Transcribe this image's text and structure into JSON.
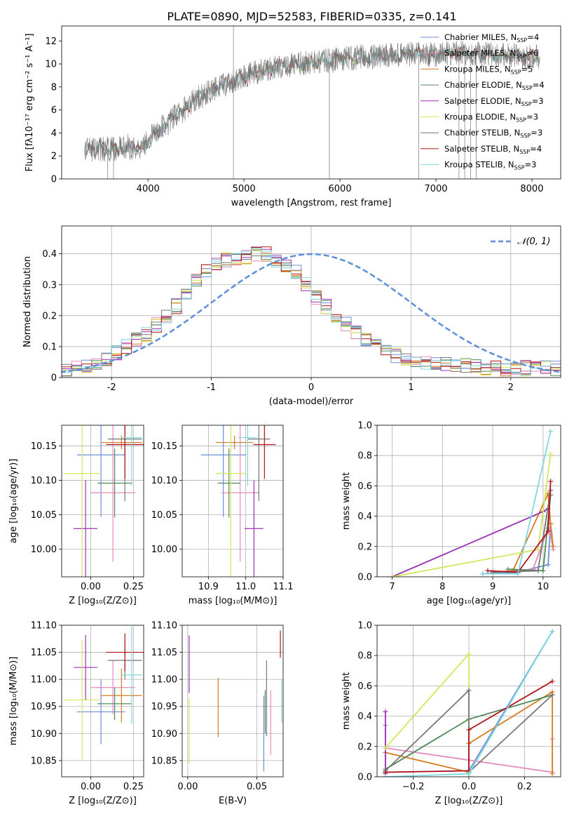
{
  "figure_title": "PLATE=0890, MJD=52583, FIBERID=0335, z=0.141",
  "colors": {
    "chabrier_miles": "#6b8fd6",
    "salpeter_miles": "#e48ac0",
    "kroupa_miles": "#d97a1f",
    "chabrier_elodie": "#4e8a57",
    "salpeter_elodie": "#9b2fb5",
    "kroupa_elodie": "#d4e65a",
    "chabrier_stelib": "#777777",
    "salpeter_stelib": "#b3131a",
    "kroupa_stelib": "#7fd8e0",
    "gaussian": "#5b8fd9"
  },
  "chart_data": [
    {
      "id": "spectrum",
      "type": "line",
      "title": "PLATE=0890, MJD=52583, FIBERID=0335, z=0.141",
      "xlabel": "wavelength [Angstrom, rest frame]",
      "ylabel": "Flux [fλ10⁻¹⁷ erg cm⁻² s⁻¹ A⁻¹]",
      "xlim": [
        3100,
        8300
      ],
      "ylim": [
        0,
        13.3
      ],
      "xticks": [
        4000,
        5000,
        6000,
        7000,
        8000
      ],
      "yticks": [
        0,
        2,
        4,
        6,
        8,
        10,
        12
      ],
      "grid": false,
      "legend_position": "upper-right",
      "x_range_data": [
        3340,
        8080
      ],
      "continuum": {
        "x": [
          3340,
          3500,
          3600,
          3700,
          3800,
          3900,
          4000,
          4100,
          4200,
          4300,
          4400,
          4500,
          4600,
          4800,
          5000,
          5200,
          5400,
          5600,
          5800,
          6000,
          6200,
          6400,
          6600,
          6800,
          7000,
          7200,
          7400,
          7600,
          7800,
          8080
        ],
        "y": [
          2.5,
          2.6,
          2.6,
          2.7,
          2.8,
          2.6,
          3.4,
          4.2,
          4.8,
          5.6,
          6.2,
          7.0,
          7.4,
          8.2,
          9.0,
          9.4,
          9.8,
          10.0,
          10.2,
          10.4,
          10.6,
          10.6,
          10.8,
          10.8,
          10.8,
          11.0,
          10.9,
          10.8,
          10.7,
          10.6
        ]
      },
      "series": [
        {
          "name": "Chabrier MILES, N$_{SSP}$=4",
          "label_main": "Chabrier MILES, N",
          "label_sub": "SSP",
          "label_end": "=4",
          "color_key": "chabrier_miles"
        },
        {
          "name": "Salpeter MILES, N$_{SSP}$=6",
          "label_main": "Salpeter MILES, N",
          "label_sub": "SSP",
          "label_end": "=6",
          "color_key": "salpeter_miles"
        },
        {
          "name": "Kroupa MILES, N$_{SSP}$=5",
          "label_main": "Kroupa MILES, N",
          "label_sub": "SSP",
          "label_end": "=5",
          "color_key": "kroupa_miles"
        },
        {
          "name": "Chabrier ELODIE, N$_{SSP}$=4",
          "label_main": "Chabrier ELODIE, N",
          "label_sub": "SSP",
          "label_end": "=4",
          "color_key": "chabrier_elodie"
        },
        {
          "name": "Salpeter ELODIE, N$_{SSP}$=3",
          "label_main": "Salpeter ELODIE, N",
          "label_sub": "SSP",
          "label_end": "=3",
          "color_key": "salpeter_elodie"
        },
        {
          "name": "Kroupa ELODIE, N$_{SSP}$=3",
          "label_main": "Kroupa ELODIE, N",
          "label_sub": "SSP",
          "label_end": "=3",
          "color_key": "kroupa_elodie"
        },
        {
          "name": "Chabrier STELIB, N$_{SSP}$=3",
          "label_main": "Chabrier STELIB, N",
          "label_sub": "SSP",
          "label_end": "=3",
          "color_key": "chabrier_stelib"
        },
        {
          "name": "Salpeter STELIB, N$_{SSP}$=4",
          "label_main": "Salpeter STELIB, N",
          "label_sub": "SSP",
          "label_end": "=4",
          "color_key": "salpeter_stelib"
        },
        {
          "name": "Kroupa STELIB, N$_{SSP}$=3",
          "label_main": "Kroupa STELIB, N",
          "label_sub": "SSP",
          "label_end": "=3",
          "color_key": "kroupa_stelib"
        }
      ]
    },
    {
      "id": "residuals",
      "type": "histogram",
      "xlabel": "(data-model)/error",
      "ylabel": "Normed distribution",
      "xlim": [
        -2.5,
        2.5
      ],
      "ylim": [
        0,
        0.49
      ],
      "xticks": [
        -2,
        -1,
        0,
        1,
        2
      ],
      "yticks": [
        0.0,
        0.1,
        0.2,
        0.3,
        0.4
      ],
      "grid": true,
      "legend_position": "upper-right",
      "legend_label": "𝒩(0, 1)",
      "bin_width": 0.1,
      "gaussian": {
        "mean": 0,
        "sigma": 1,
        "style": "dashed"
      },
      "envelope_y": [
        0.02,
        0.03,
        0.04,
        0.05,
        0.06,
        0.08,
        0.1,
        0.12,
        0.14,
        0.17,
        0.2,
        0.23,
        0.27,
        0.31,
        0.34,
        0.37,
        0.38,
        0.38,
        0.39,
        0.4,
        0.4,
        0.38,
        0.36,
        0.34,
        0.3,
        0.26,
        0.23,
        0.2,
        0.17,
        0.15,
        0.12,
        0.1,
        0.08,
        0.07,
        0.06,
        0.05,
        0.05,
        0.05,
        0.04,
        0.04,
        0.04,
        0.04,
        0.03,
        0.03,
        0.03,
        0.03,
        0.03,
        0.03,
        0.03,
        0.03
      ],
      "envelope_x_start": -2.5
    },
    {
      "id": "z_age",
      "type": "errorbar",
      "xlabel": "Z [log₁₀(Z/Z⊙)]",
      "ylabel": "age  [log₁₀(age/yr)]",
      "xlim": [
        -0.17,
        0.31
      ],
      "ylim": [
        9.96,
        10.18
      ],
      "xticks": [
        0.0,
        0.25
      ],
      "xtick_labels": [
        "0.00",
        "0.25"
      ],
      "yticks": [
        10.0,
        10.05,
        10.1,
        10.15
      ],
      "ytick_labels": [
        "10.00",
        "10.05",
        "10.10",
        "10.15"
      ],
      "grid": true,
      "points": [
        {
          "color_key": "chabrier_miles",
          "x": 0.06,
          "xerr": 0.14,
          "y": 10.137,
          "yerr": 0.09
        },
        {
          "color_key": "salpeter_miles",
          "x": 0.13,
          "xerr": 0.13,
          "y": 10.082,
          "yerr": 0.1
        },
        {
          "color_key": "kroupa_miles",
          "x": 0.18,
          "xerr": 0.12,
          "y": 10.155,
          "yerr": 0.01
        },
        {
          "color_key": "chabrier_elodie",
          "x": 0.14,
          "xerr": 0.1,
          "y": 10.096,
          "yerr": 0.05
        },
        {
          "color_key": "salpeter_elodie",
          "x": -0.03,
          "xerr": 0.07,
          "y": 10.03,
          "yerr": 0.07
        },
        {
          "color_key": "kroupa_elodie",
          "x": -0.05,
          "xerr": 0.11,
          "y": 10.11,
          "yerr": 0.15
        },
        {
          "color_key": "chabrier_stelib",
          "x": 0.2,
          "xerr": 0.1,
          "y": 10.16,
          "yerr": 0.09
        },
        {
          "color_key": "salpeter_stelib",
          "x": 0.2,
          "xerr": 0.11,
          "y": 10.152,
          "yerr": 0.05
        },
        {
          "color_key": "kroupa_stelib",
          "x": 0.24,
          "xerr": 0.06,
          "y": 10.162,
          "yerr": 0.07
        }
      ]
    },
    {
      "id": "mass_age",
      "type": "errorbar",
      "xlabel": "mass [log₁₀(M/M⊙)]",
      "ylabel": "",
      "xlim": [
        10.83,
        11.1
      ],
      "ylim": [
        9.96,
        10.18
      ],
      "xticks": [
        10.9,
        11.0,
        11.1
      ],
      "xtick_labels": [
        "10.9",
        "11.0",
        "11.1"
      ],
      "yticks": [
        10.0,
        10.05,
        10.1,
        10.15
      ],
      "ytick_labels": [
        "10.00",
        "10.05",
        "10.10",
        "10.15"
      ],
      "grid": true,
      "points": [
        {
          "color_key": "chabrier_miles",
          "x": 10.94,
          "xerr": 0.06,
          "y": 10.137,
          "yerr": 0.09
        },
        {
          "color_key": "salpeter_miles",
          "x": 10.985,
          "xerr": 0.05,
          "y": 10.082,
          "yerr": 0.1
        },
        {
          "color_key": "kroupa_miles",
          "x": 10.97,
          "xerr": 0.05,
          "y": 10.155,
          "yerr": 0.01
        },
        {
          "color_key": "chabrier_elodie",
          "x": 10.955,
          "xerr": 0.03,
          "y": 10.096,
          "yerr": 0.05
        },
        {
          "color_key": "salpeter_elodie",
          "x": 11.022,
          "xerr": 0.025,
          "y": 10.03,
          "yerr": 0.07
        },
        {
          "color_key": "kroupa_elodie",
          "x": 10.96,
          "xerr": 0.04,
          "y": 10.11,
          "yerr": 0.15
        },
        {
          "color_key": "chabrier_stelib",
          "x": 11.035,
          "xerr": 0.03,
          "y": 10.16,
          "yerr": 0.09
        },
        {
          "color_key": "salpeter_stelib",
          "x": 11.05,
          "xerr": 0.03,
          "y": 10.152,
          "yerr": 0.05
        },
        {
          "color_key": "kroupa_stelib",
          "x": 11.005,
          "xerr": 0.025,
          "y": 10.162,
          "yerr": 0.07
        }
      ]
    },
    {
      "id": "age_weight",
      "type": "line",
      "xlabel": "age  [log₁₀(age/yr)]",
      "ylabel": "mass weight",
      "xlim": [
        6.7,
        10.35
      ],
      "ylim": [
        0,
        1.0
      ],
      "xticks": [
        7,
        8,
        9,
        10
      ],
      "yticks": [
        0.0,
        0.2,
        0.4,
        0.6,
        0.8,
        1.0
      ],
      "ytick_labels": [
        "0.0",
        "0.2",
        "0.4",
        "0.6",
        "0.8",
        "1.0"
      ],
      "grid": true,
      "series": [
        {
          "color_key": "chabrier_miles",
          "x": [
            8.8,
            9.5,
            10.1,
            10.15
          ],
          "y": [
            0.02,
            0.03,
            0.08,
            0.35
          ]
        },
        {
          "color_key": "salpeter_miles",
          "x": [
            9.0,
            9.8,
            10.1,
            10.15,
            10.2
          ],
          "y": [
            0.03,
            0.05,
            0.32,
            0.28,
            0.18
          ]
        },
        {
          "color_key": "kroupa_miles",
          "x": [
            9.0,
            9.4,
            10.1,
            10.15,
            10.2
          ],
          "y": [
            0.03,
            0.04,
            0.55,
            0.35,
            0.2
          ]
        },
        {
          "color_key": "chabrier_elodie",
          "x": [
            9.3,
            10.0,
            10.15
          ],
          "y": [
            0.05,
            0.04,
            0.54
          ]
        },
        {
          "color_key": "salpeter_elodie",
          "x": [
            7.0,
            10.0,
            10.1
          ],
          "y": [
            0.0,
            0.43,
            0.45
          ]
        },
        {
          "color_key": "kroupa_elodie",
          "x": [
            7.0,
            9.9,
            10.15
          ],
          "y": [
            0.0,
            0.18,
            0.81
          ]
        },
        {
          "color_key": "chabrier_stelib",
          "x": [
            9.0,
            9.9,
            10.15
          ],
          "y": [
            0.03,
            0.04,
            0.57
          ]
        },
        {
          "color_key": "salpeter_stelib",
          "x": [
            8.9,
            9.5,
            10.1,
            10.15
          ],
          "y": [
            0.04,
            0.03,
            0.3,
            0.63
          ]
        },
        {
          "color_key": "kroupa_stelib",
          "x": [
            8.8,
            9.5,
            10.15
          ],
          "y": [
            0.02,
            0.02,
            0.96
          ]
        }
      ]
    },
    {
      "id": "z_mass",
      "type": "errorbar",
      "xlabel": "Z [log₁₀(Z/Z⊙)]",
      "ylabel": "mass [log₁₀(M/M⊙)]",
      "xlim": [
        -0.17,
        0.31
      ],
      "ylim": [
        10.82,
        11.1
      ],
      "xticks": [
        0.0,
        0.25
      ],
      "xtick_labels": [
        "0.00",
        "0.25"
      ],
      "yticks": [
        10.85,
        10.9,
        10.95,
        11.0,
        11.05,
        11.1
      ],
      "ytick_labels": [
        "10.85",
        "10.90",
        "10.95",
        "11.00",
        "11.05",
        "11.10"
      ],
      "grid": true,
      "points": [
        {
          "color_key": "chabrier_miles",
          "x": 0.06,
          "xerr": 0.14,
          "y": 10.94,
          "yerr": 0.06
        },
        {
          "color_key": "salpeter_miles",
          "x": 0.13,
          "xerr": 0.13,
          "y": 10.985,
          "yerr": 0.05
        },
        {
          "color_key": "kroupa_miles",
          "x": 0.18,
          "xerr": 0.12,
          "y": 10.97,
          "yerr": 0.05
        },
        {
          "color_key": "chabrier_elodie",
          "x": 0.14,
          "xerr": 0.1,
          "y": 10.955,
          "yerr": 0.03
        },
        {
          "color_key": "salpeter_elodie",
          "x": -0.03,
          "xerr": 0.07,
          "y": 11.022,
          "yerr": 0.06
        },
        {
          "color_key": "kroupa_elodie",
          "x": -0.05,
          "xerr": 0.11,
          "y": 10.962,
          "yerr": 0.11
        },
        {
          "color_key": "chabrier_stelib",
          "x": 0.2,
          "xerr": 0.1,
          "y": 11.035,
          "yerr": 0.035
        },
        {
          "color_key": "salpeter_stelib",
          "x": 0.2,
          "xerr": 0.11,
          "y": 11.05,
          "yerr": 0.035
        },
        {
          "color_key": "kroupa_stelib",
          "x": 0.24,
          "xerr": 0.06,
          "y": 11.008,
          "yerr": 0.09
        }
      ]
    },
    {
      "id": "ebv_mass",
      "type": "errorbar",
      "xlabel": "E(B-V)",
      "ylabel": "",
      "xlim": [
        -0.004,
        0.069
      ],
      "ylim": [
        10.82,
        11.1
      ],
      "xticks": [
        0.0,
        0.05
      ],
      "xtick_labels": [
        "0.00",
        "0.05"
      ],
      "yticks": [
        10.85,
        10.9,
        10.95,
        11.0,
        11.05,
        11.1
      ],
      "ytick_labels": [
        "10.85",
        "10.90",
        "10.95",
        "11.00",
        "11.05",
        "11.10"
      ],
      "grid": true,
      "points": [
        {
          "color_key": "chabrier_miles",
          "x": 0.055,
          "xerr": 0,
          "y": 10.9,
          "yerr": 0.07
        },
        {
          "color_key": "salpeter_miles",
          "x": 0.06,
          "xerr": 0,
          "y": 10.92,
          "yerr": 0.06
        },
        {
          "color_key": "kroupa_miles",
          "x": 0.022,
          "xerr": 0,
          "y": 10.948,
          "yerr": 0.055
        },
        {
          "color_key": "chabrier_elodie",
          "x": 0.056,
          "xerr": 0,
          "y": 10.94,
          "yerr": 0.04
        },
        {
          "color_key": "salpeter_elodie",
          "x": 0.001,
          "xerr": 0,
          "y": 11.028,
          "yerr": 0.053
        },
        {
          "color_key": "kroupa_elodie",
          "x": 0.001,
          "xerr": 0,
          "y": 10.905,
          "yerr": 0.06
        },
        {
          "color_key": "chabrier_stelib",
          "x": 0.057,
          "xerr": 0,
          "y": 10.965,
          "yerr": 0.07
        },
        {
          "color_key": "salpeter_stelib",
          "x": 0.067,
          "xerr": 0,
          "y": 11.065,
          "yerr": 0.025
        },
        {
          "color_key": "kroupa_stelib",
          "x": 0.068,
          "xerr": 0,
          "y": 10.96,
          "yerr": 0.04
        }
      ]
    },
    {
      "id": "z_weight",
      "type": "line",
      "xlabel": "Z [log₁₀(Z/Z⊙)]",
      "ylabel": "mass weight",
      "xlim": [
        -0.33,
        0.33
      ],
      "ylim": [
        0,
        1.0
      ],
      "xticks": [
        -0.2,
        0.0,
        0.2
      ],
      "xtick_labels": [
        "−0.2",
        "0.0",
        "0.2"
      ],
      "yticks": [
        0.0,
        0.2,
        0.4,
        0.6,
        0.8,
        1.0
      ],
      "ytick_labels": [
        "0.0",
        "0.2",
        "0.4",
        "0.6",
        "0.8",
        "1.0"
      ],
      "grid": true,
      "series": [
        {
          "color_key": "chabrier_miles",
          "x": [
            -0.3,
            -0.3,
            0.0,
            0.3
          ],
          "y": [
            0.34,
            0.03,
            0.04,
            0.96
          ]
        },
        {
          "color_key": "salpeter_miles",
          "x": [
            -0.3,
            0.3,
            0.3
          ],
          "y": [
            0.19,
            0.03,
            0.25
          ]
        },
        {
          "color_key": "kroupa_miles",
          "x": [
            -0.3,
            0.0,
            0.0,
            0.3,
            0.3
          ],
          "y": [
            0.16,
            0.03,
            0.22,
            0.56,
            0.02
          ]
        },
        {
          "color_key": "chabrier_elodie",
          "x": [
            -0.3,
            0.0,
            0.3
          ],
          "y": [
            0.05,
            0.38,
            0.54
          ]
        },
        {
          "color_key": "salpeter_elodie",
          "x": [
            -0.3,
            -0.3
          ],
          "y": [
            0.02,
            0.43
          ]
        },
        {
          "color_key": "kroupa_elodie",
          "x": [
            -0.3,
            0.0,
            0.0
          ],
          "y": [
            0.19,
            0.81,
            0.0
          ]
        },
        {
          "color_key": "chabrier_stelib",
          "x": [
            -0.3,
            0.0,
            0.0,
            0.3
          ],
          "y": [
            0.04,
            0.57,
            0.03,
            0.54
          ]
        },
        {
          "color_key": "salpeter_stelib",
          "x": [
            -0.3,
            0.0,
            0.0,
            0.3
          ],
          "y": [
            0.03,
            0.04,
            0.31,
            0.63
          ]
        },
        {
          "color_key": "kroupa_stelib",
          "x": [
            -0.3,
            0.0,
            0.3
          ],
          "y": [
            0.0,
            0.02,
            0.96
          ]
        }
      ]
    }
  ]
}
